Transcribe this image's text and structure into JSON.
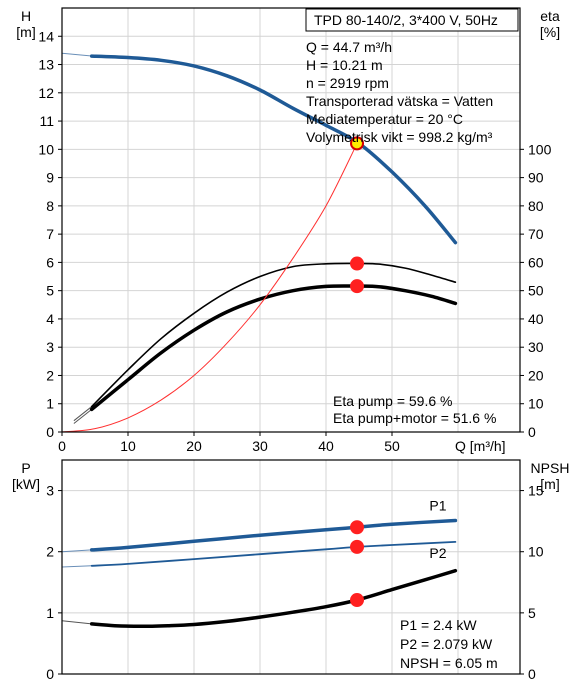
{
  "chart_data": [
    {
      "type": "line",
      "title": "TPD 80-140/2, 3*400 V, 50Hz",
      "xlabel": "Q [m³/h]",
      "ylabel_left": [
        "H",
        "[m]"
      ],
      "ylabel_right": [
        "eta",
        "[%]"
      ],
      "xlim": [
        0,
        60
      ],
      "ylim_left": [
        0,
        15
      ],
      "ylim_right": [
        0,
        150
      ],
      "x_ticks": [
        0,
        10,
        20,
        30,
        40,
        50
      ],
      "y_ticks_left": [
        0,
        1,
        2,
        3,
        4,
        5,
        6,
        7,
        8,
        9,
        10,
        11,
        12,
        13,
        14
      ],
      "y_ticks_right": [
        0,
        10,
        20,
        30,
        40,
        50,
        60,
        70,
        80,
        90,
        100
      ],
      "grid": true,
      "info": [
        "Q = 44.7 m³/h",
        "H = 10.21 m",
        "n = 2919 rpm",
        "Transporterad vätska = Vatten",
        "Mediatemperatur = 20 °C",
        "Volymetrisk vikt = 998.2 kg/m³"
      ],
      "efficiency_notes": [
        "Eta pump = 59.6 %",
        "Eta pump+motor = 51.6 %"
      ],
      "series": [
        {
          "axis": "left",
          "color": "#1f5a96",
          "width": 3.5,
          "x": [
            4.5,
            10,
            15,
            20,
            25,
            30,
            35,
            40,
            45,
            50,
            55,
            59.6
          ],
          "y": [
            13.3,
            13.25,
            13.15,
            12.95,
            12.6,
            12.1,
            11.45,
            10.85,
            10.21,
            9.2,
            8.0,
            6.7
          ],
          "thin_start": {
            "x": 0,
            "y": 13.4
          }
        },
        {
          "axis": "right",
          "color": "#000000",
          "width": 1.6,
          "x": [
            4.5,
            10,
            15,
            20,
            25,
            30,
            35,
            40,
            45,
            48,
            52,
            56,
            59.6
          ],
          "y": [
            9,
            22,
            33,
            42,
            49.5,
            55,
            58.5,
            59.5,
            59.6,
            59.4,
            58,
            55.5,
            53
          ],
          "thin_start": {
            "x": 1.8,
            "y": 4
          }
        },
        {
          "axis": "right",
          "color": "#000000",
          "width": 3.5,
          "x": [
            4.5,
            10,
            15,
            20,
            25,
            30,
            35,
            40,
            45,
            48,
            52,
            56,
            59.6
          ],
          "y": [
            8,
            18.5,
            28,
            36,
            42.5,
            47,
            50,
            51.5,
            51.6,
            51.4,
            50,
            48,
            45.5
          ],
          "thin_start": {
            "x": 1.8,
            "y": 3
          }
        },
        {
          "axis": "right",
          "color": "#ff3030",
          "width": 1,
          "x": [
            0,
            5,
            10,
            15,
            20,
            25,
            30,
            35,
            40,
            44.7
          ],
          "y": [
            0,
            1.2,
            5,
            11.3,
            20,
            31.4,
            45,
            61.5,
            80,
            102
          ]
        }
      ],
      "markers": [
        {
          "axis": "left",
          "x": 44.7,
          "y": 10.21,
          "fill": "#ffee00",
          "stroke": "#d40000"
        },
        {
          "axis": "right",
          "x": 44.7,
          "y": 59.6,
          "fill": "#ff2020",
          "stroke": "#ff2020"
        },
        {
          "axis": "right",
          "x": 44.7,
          "y": 51.6,
          "fill": "#ff2020",
          "stroke": "#ff2020"
        }
      ]
    },
    {
      "type": "line",
      "xlim": [
        0,
        60
      ],
      "ylim_left": [
        0,
        3.5
      ],
      "ylim_right": [
        0,
        17.5
      ],
      "ylabel_left": [
        "P",
        "[kW]"
      ],
      "ylabel_right": [
        "NPSH",
        "[m]"
      ],
      "y_ticks_left": [
        0,
        1,
        2,
        3
      ],
      "y_ticks_right": [
        0,
        5,
        10,
        15
      ],
      "grid": true,
      "notes": [
        "P1 = 2.4 kW",
        "P2 = 2.079 kW",
        "NPSH = 6.05 m"
      ],
      "series": [
        {
          "name": "P1",
          "axis": "left",
          "color": "#1f5a96",
          "width": 3.5,
          "x": [
            4.5,
            10,
            20,
            30,
            40,
            44.7,
            50,
            59.6
          ],
          "y": [
            2.03,
            2.07,
            2.17,
            2.27,
            2.36,
            2.4,
            2.45,
            2.51
          ],
          "thin_start": {
            "x": 0,
            "y": 2.0
          }
        },
        {
          "name": "P2",
          "axis": "left",
          "color": "#1f5a96",
          "width": 1.8,
          "x": [
            4.5,
            10,
            20,
            30,
            40,
            44.7,
            50,
            59.6
          ],
          "y": [
            1.77,
            1.8,
            1.88,
            1.96,
            2.04,
            2.079,
            2.11,
            2.16
          ],
          "thin_start": {
            "x": 0,
            "y": 1.75
          }
        },
        {
          "name": "NPSH",
          "axis": "right",
          "color": "#000000",
          "width": 3.5,
          "x": [
            4.5,
            8,
            12,
            16,
            20,
            25,
            30,
            35,
            40,
            44.7,
            50,
            55,
            59.6
          ],
          "y": [
            4.1,
            3.95,
            3.9,
            3.95,
            4.05,
            4.3,
            4.65,
            5.05,
            5.5,
            6.05,
            6.9,
            7.7,
            8.45
          ],
          "thin_start": {
            "x": 0,
            "y": 4.35
          }
        }
      ],
      "markers": [
        {
          "axis": "left",
          "x": 44.7,
          "y": 2.4,
          "fill": "#ff2020",
          "stroke": "#ff2020"
        },
        {
          "axis": "left",
          "x": 44.7,
          "y": 2.079,
          "fill": "#ff2020",
          "stroke": "#ff2020"
        },
        {
          "axis": "right",
          "x": 44.7,
          "y": 6.05,
          "fill": "#ff2020",
          "stroke": "#ff2020"
        }
      ]
    }
  ]
}
